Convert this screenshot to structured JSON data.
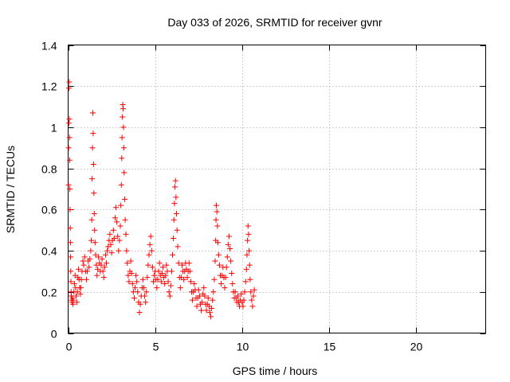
{
  "chart_data": {
    "type": "scatter",
    "title": "Day 033 of 2026, SRMTID for receiver gvnr",
    "xlabel": "GPS time / hours",
    "ylabel": "SRMTID / TECUs",
    "xlim": [
      0,
      24
    ],
    "ylim": [
      0,
      1.4
    ],
    "xticks": [
      0,
      5,
      10,
      15,
      20
    ],
    "xtick_labels": [
      "0",
      "5",
      "10",
      "15",
      "20"
    ],
    "yticks": [
      0,
      0.2,
      0.4,
      0.6,
      0.8,
      1.0,
      1.2,
      1.4
    ],
    "ytick_labels": [
      "0",
      "0.2",
      "0.4",
      "0.6",
      "0.8",
      "1",
      "1.2",
      "1.4"
    ],
    "grid": true,
    "marker": "plus",
    "series": [
      {
        "name": "SRMTID",
        "color": "#ff0000",
        "points": [
          [
            0.02,
            0.72
          ],
          [
            0.03,
            0.9
          ],
          [
            0.04,
            1.02
          ],
          [
            0.05,
            1.19
          ],
          [
            0.06,
            1.22
          ],
          [
            0.07,
            1.04
          ],
          [
            0.08,
            0.95
          ],
          [
            0.09,
            0.84
          ],
          [
            0.1,
            0.7
          ],
          [
            0.11,
            0.6
          ],
          [
            0.12,
            0.51
          ],
          [
            0.13,
            0.44
          ],
          [
            0.14,
            0.37
          ],
          [
            0.15,
            0.3
          ],
          [
            0.16,
            0.25
          ],
          [
            0.17,
            0.2
          ],
          [
            0.18,
            0.18
          ],
          [
            0.2,
            0.16
          ],
          [
            0.22,
            0.15
          ],
          [
            0.25,
            0.17
          ],
          [
            0.28,
            0.14
          ],
          [
            0.3,
            0.16
          ],
          [
            0.33,
            0.2
          ],
          [
            0.36,
            0.24
          ],
          [
            0.4,
            0.28
          ],
          [
            0.43,
            0.22
          ],
          [
            0.46,
            0.18
          ],
          [
            0.5,
            0.15
          ],
          [
            0.53,
            0.2
          ],
          [
            0.56,
            0.27
          ],
          [
            0.6,
            0.31
          ],
          [
            0.63,
            0.26
          ],
          [
            0.66,
            0.22
          ],
          [
            0.7,
            0.19
          ],
          [
            0.73,
            0.22
          ],
          [
            0.76,
            0.26
          ],
          [
            0.8,
            0.3
          ],
          [
            0.85,
            0.35
          ],
          [
            0.9,
            0.33
          ],
          [
            0.95,
            0.37
          ],
          [
            1.0,
            0.3
          ],
          [
            1.05,
            0.26
          ],
          [
            1.1,
            0.3
          ],
          [
            1.15,
            0.35
          ],
          [
            1.2,
            0.32
          ],
          [
            1.25,
            0.36
          ],
          [
            1.3,
            0.4
          ],
          [
            1.33,
            0.45
          ],
          [
            1.36,
            0.55
          ],
          [
            1.38,
            0.75
          ],
          [
            1.4,
            0.9
          ],
          [
            1.42,
            1.07
          ],
          [
            1.44,
            0.97
          ],
          [
            1.46,
            0.82
          ],
          [
            1.48,
            0.68
          ],
          [
            1.5,
            0.58
          ],
          [
            1.52,
            0.5
          ],
          [
            1.55,
            0.44
          ],
          [
            1.58,
            0.38
          ],
          [
            1.62,
            0.33
          ],
          [
            1.66,
            0.28
          ],
          [
            1.7,
            0.31
          ],
          [
            1.75,
            0.37
          ],
          [
            1.8,
            0.34
          ],
          [
            1.85,
            0.3
          ],
          [
            1.9,
            0.33
          ],
          [
            1.95,
            0.36
          ],
          [
            2.0,
            0.3
          ],
          [
            2.05,
            0.27
          ],
          [
            2.1,
            0.32
          ],
          [
            2.15,
            0.38
          ],
          [
            2.2,
            0.34
          ],
          [
            2.25,
            0.4
          ],
          [
            2.3,
            0.42
          ],
          [
            2.35,
            0.45
          ],
          [
            2.4,
            0.48
          ],
          [
            2.45,
            0.43
          ],
          [
            2.5,
            0.39
          ],
          [
            2.55,
            0.45
          ],
          [
            2.6,
            0.5
          ],
          [
            2.65,
            0.46
          ],
          [
            2.7,
            0.56
          ],
          [
            2.75,
            0.61
          ],
          [
            2.8,
            0.54
          ],
          [
            2.85,
            0.47
          ],
          [
            2.9,
            0.4
          ],
          [
            2.95,
            0.45
          ],
          [
            3.0,
            0.52
          ],
          [
            3.03,
            0.62
          ],
          [
            3.06,
            0.72
          ],
          [
            3.08,
            0.85
          ],
          [
            3.1,
            0.95
          ],
          [
            3.12,
            1.05
          ],
          [
            3.14,
            1.11
          ],
          [
            3.16,
            1.09
          ],
          [
            3.18,
            1.0
          ],
          [
            3.2,
            0.9
          ],
          [
            3.22,
            0.78
          ],
          [
            3.25,
            0.65
          ],
          [
            3.28,
            0.55
          ],
          [
            3.32,
            0.48
          ],
          [
            3.36,
            0.4
          ],
          [
            3.4,
            0.34
          ],
          [
            3.45,
            0.28
          ],
          [
            3.5,
            0.25
          ],
          [
            3.55,
            0.3
          ],
          [
            3.6,
            0.35
          ],
          [
            3.65,
            0.29
          ],
          [
            3.7,
            0.24
          ],
          [
            3.75,
            0.2
          ],
          [
            3.8,
            0.17
          ],
          [
            3.85,
            0.22
          ],
          [
            3.9,
            0.28
          ],
          [
            3.95,
            0.25
          ],
          [
            4.0,
            0.2
          ],
          [
            4.05,
            0.15
          ],
          [
            4.1,
            0.1
          ],
          [
            4.15,
            0.14
          ],
          [
            4.2,
            0.18
          ],
          [
            4.25,
            0.22
          ],
          [
            4.3,
            0.26
          ],
          [
            4.35,
            0.22
          ],
          [
            4.4,
            0.18
          ],
          [
            4.45,
            0.15
          ],
          [
            4.5,
            0.2
          ],
          [
            4.55,
            0.27
          ],
          [
            4.6,
            0.33
          ],
          [
            4.65,
            0.38
          ],
          [
            4.7,
            0.43
          ],
          [
            4.75,
            0.47
          ],
          [
            4.8,
            0.4
          ],
          [
            4.85,
            0.32
          ],
          [
            4.9,
            0.25
          ],
          [
            4.95,
            0.28
          ],
          [
            5.0,
            0.3
          ],
          [
            5.05,
            0.26
          ],
          [
            5.1,
            0.22
          ],
          [
            5.15,
            0.26
          ],
          [
            5.2,
            0.3
          ],
          [
            5.25,
            0.34
          ],
          [
            5.3,
            0.28
          ],
          [
            5.35,
            0.25
          ],
          [
            5.4,
            0.29
          ],
          [
            5.45,
            0.32
          ],
          [
            5.5,
            0.27
          ],
          [
            5.55,
            0.24
          ],
          [
            5.6,
            0.28
          ],
          [
            5.65,
            0.33
          ],
          [
            5.7,
            0.3
          ],
          [
            5.75,
            0.25
          ],
          [
            5.8,
            0.2
          ],
          [
            5.85,
            0.18
          ],
          [
            5.9,
            0.23
          ],
          [
            5.95,
            0.3
          ],
          [
            6.0,
            0.38
          ],
          [
            6.05,
            0.46
          ],
          [
            6.08,
            0.55
          ],
          [
            6.11,
            0.63
          ],
          [
            6.14,
            0.71
          ],
          [
            6.17,
            0.74
          ],
          [
            6.2,
            0.66
          ],
          [
            6.23,
            0.58
          ],
          [
            6.26,
            0.5
          ],
          [
            6.3,
            0.42
          ],
          [
            6.35,
            0.34
          ],
          [
            6.4,
            0.27
          ],
          [
            6.45,
            0.22
          ],
          [
            6.5,
            0.27
          ],
          [
            6.55,
            0.33
          ],
          [
            6.6,
            0.3
          ],
          [
            6.65,
            0.26
          ],
          [
            6.7,
            0.3
          ],
          [
            6.75,
            0.34
          ],
          [
            6.8,
            0.31
          ],
          [
            6.85,
            0.27
          ],
          [
            6.9,
            0.3
          ],
          [
            6.95,
            0.34
          ],
          [
            7.0,
            0.3
          ],
          [
            7.05,
            0.25
          ],
          [
            7.1,
            0.2
          ],
          [
            7.15,
            0.16
          ],
          [
            7.2,
            0.2
          ],
          [
            7.25,
            0.24
          ],
          [
            7.3,
            0.21
          ],
          [
            7.35,
            0.17
          ],
          [
            7.4,
            0.13
          ],
          [
            7.45,
            0.17
          ],
          [
            7.5,
            0.21
          ],
          [
            7.55,
            0.18
          ],
          [
            7.6,
            0.14
          ],
          [
            7.65,
            0.11
          ],
          [
            7.7,
            0.15
          ],
          [
            7.75,
            0.19
          ],
          [
            7.8,
            0.22
          ],
          [
            7.85,
            0.18
          ],
          [
            7.9,
            0.14
          ],
          [
            7.95,
            0.11
          ],
          [
            8.0,
            0.14
          ],
          [
            8.05,
            0.17
          ],
          [
            8.1,
            0.13
          ],
          [
            8.15,
            0.1
          ],
          [
            8.2,
            0.08
          ],
          [
            8.25,
            0.12
          ],
          [
            8.3,
            0.16
          ],
          [
            8.35,
            0.2
          ],
          [
            8.4,
            0.26
          ],
          [
            8.45,
            0.35
          ],
          [
            8.48,
            0.45
          ],
          [
            8.5,
            0.55
          ],
          [
            8.52,
            0.62
          ],
          [
            8.55,
            0.59
          ],
          [
            8.58,
            0.52
          ],
          [
            8.61,
            0.44
          ],
          [
            8.65,
            0.38
          ],
          [
            8.7,
            0.33
          ],
          [
            8.75,
            0.28
          ],
          [
            8.8,
            0.24
          ],
          [
            8.85,
            0.28
          ],
          [
            8.9,
            0.32
          ],
          [
            8.95,
            0.27
          ],
          [
            9.0,
            0.22
          ],
          [
            9.05,
            0.27
          ],
          [
            9.1,
            0.32
          ],
          [
            9.15,
            0.37
          ],
          [
            9.2,
            0.43
          ],
          [
            9.25,
            0.47
          ],
          [
            9.3,
            0.41
          ],
          [
            9.35,
            0.35
          ],
          [
            9.4,
            0.29
          ],
          [
            9.45,
            0.24
          ],
          [
            9.5,
            0.2
          ],
          [
            9.55,
            0.17
          ],
          [
            9.6,
            0.2
          ],
          [
            9.65,
            0.17
          ],
          [
            9.7,
            0.15
          ],
          [
            9.75,
            0.18
          ],
          [
            9.8,
            0.15
          ],
          [
            9.85,
            0.13
          ],
          [
            9.9,
            0.16
          ],
          [
            9.95,
            0.19
          ],
          [
            10.0,
            0.15
          ],
          [
            10.05,
            0.13
          ],
          [
            10.1,
            0.16
          ],
          [
            10.15,
            0.2
          ],
          [
            10.2,
            0.25
          ],
          [
            10.25,
            0.31
          ],
          [
            10.28,
            0.38
          ],
          [
            10.31,
            0.45
          ],
          [
            10.34,
            0.52
          ],
          [
            10.37,
            0.48
          ],
          [
            10.4,
            0.4
          ],
          [
            10.43,
            0.33
          ],
          [
            10.46,
            0.26
          ],
          [
            10.5,
            0.2
          ],
          [
            10.55,
            0.16
          ],
          [
            10.6,
            0.13
          ],
          [
            10.65,
            0.18
          ],
          [
            10.7,
            0.21
          ]
        ]
      }
    ]
  }
}
